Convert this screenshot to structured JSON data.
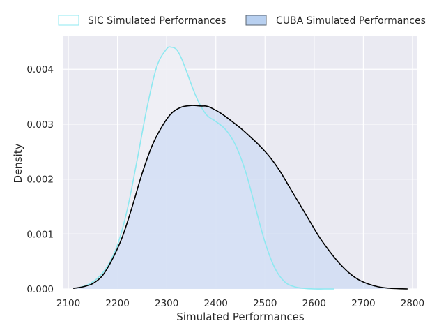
{
  "colors": {
    "plot_background": "#eaeaf2",
    "grid": "#ffffff",
    "sic_line": "#8ee8f0",
    "sic_fill": "#f0f0f6",
    "cuba_line": "#000000",
    "cuba_fill": "#c2d6f4"
  },
  "chart_data": {
    "type": "area",
    "title": "",
    "xlabel": "Simulated Performances",
    "ylabel": "Density",
    "xlim": [
      2090,
      2810
    ],
    "ylim": [
      0,
      0.0046
    ],
    "xticks": [
      2100,
      2200,
      2300,
      2400,
      2500,
      2600,
      2700,
      2800
    ],
    "xtick_labels": [
      "2100",
      "2200",
      "2300",
      "2400",
      "2500",
      "2600",
      "2700",
      "2800"
    ],
    "yticks": [
      0,
      0.001,
      0.002,
      0.003,
      0.004
    ],
    "ytick_labels": [
      "0.000",
      "0.001",
      "0.002",
      "0.003",
      "0.004"
    ],
    "grid": true,
    "legend_position": "top, above plot",
    "series": [
      {
        "name": "SIC Simulated Performances",
        "x": [
          2120,
          2140,
          2160,
          2180,
          2200,
          2220,
          2240,
          2260,
          2280,
          2300,
          2310,
          2320,
          2330,
          2340,
          2360,
          2380,
          2400,
          2420,
          2440,
          2460,
          2480,
          2500,
          2520,
          2540,
          2560,
          2580,
          2600,
          2620,
          2640
        ],
        "y": [
          2e-05,
          8e-05,
          0.0002,
          0.00042,
          0.0008,
          0.00145,
          0.00235,
          0.0033,
          0.00405,
          0.00437,
          0.0044,
          0.00436,
          0.0042,
          0.00397,
          0.0035,
          0.00318,
          0.00305,
          0.0029,
          0.00262,
          0.00215,
          0.0015,
          0.00085,
          0.00038,
          0.00013,
          4e-05,
          1e-05,
          0.0,
          0.0,
          0.0
        ]
      },
      {
        "name": "CUBA Simulated Performances",
        "x": [
          2110,
          2130,
          2150,
          2170,
          2190,
          2210,
          2230,
          2250,
          2270,
          2290,
          2310,
          2330,
          2350,
          2370,
          2380,
          2390,
          2410,
          2430,
          2450,
          2470,
          2490,
          2510,
          2530,
          2550,
          2570,
          2590,
          2610,
          2630,
          2650,
          2670,
          2690,
          2710,
          2730,
          2750,
          2770,
          2790
        ],
        "y": [
          1e-05,
          4e-05,
          0.0001,
          0.00025,
          0.00055,
          0.00095,
          0.0015,
          0.0021,
          0.0026,
          0.00295,
          0.0032,
          0.00331,
          0.00334,
          0.00333,
          0.00333,
          0.0033,
          0.0032,
          0.00307,
          0.00293,
          0.00277,
          0.0026,
          0.0024,
          0.00215,
          0.00185,
          0.00155,
          0.00125,
          0.00095,
          0.0007,
          0.00048,
          0.0003,
          0.00017,
          9e-05,
          4e-05,
          1.5e-05,
          5e-06,
          0.0
        ]
      }
    ]
  }
}
